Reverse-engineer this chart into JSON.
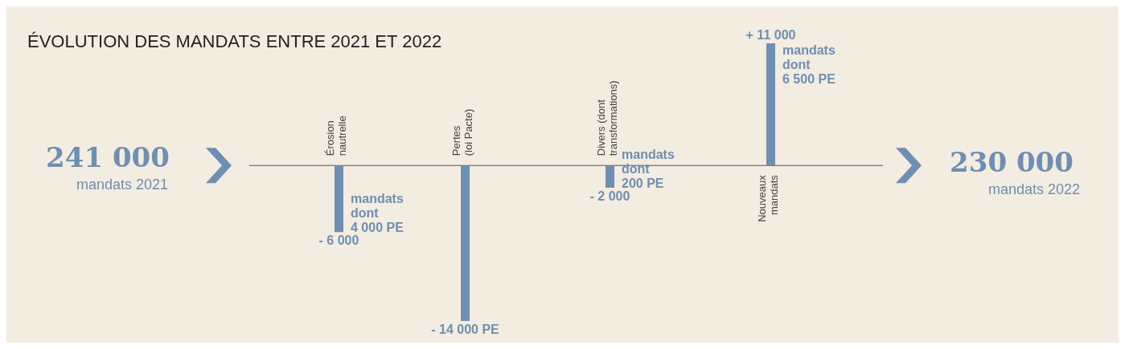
{
  "chart_data": {
    "type": "bar",
    "title": "ÉVOLUTION DES MANDATS ENTRE 2021 ET 2022",
    "categories": [
      "Érosion\nnautrelle",
      "Pertes\n(loi Pacte)",
      "Divers (dont\ntransformations)",
      "Nouveaux\nmandats"
    ],
    "values": [
      -6000,
      -14000,
      -2000,
      11000
    ],
    "color": "#6e8fb3",
    "value_labels": [
      "- 6 000",
      "- 14 000 PE",
      "- 2 000",
      "+ 11 000"
    ],
    "annotations": [
      "241 000",
      "mandats 2021",
      "230 000",
      "mandats 2022",
      "mandats\ndont\n4 000 PE",
      "mandats\ndont\n200 PE",
      "mandats\ndont\n6 500 PE"
    ]
  }
}
